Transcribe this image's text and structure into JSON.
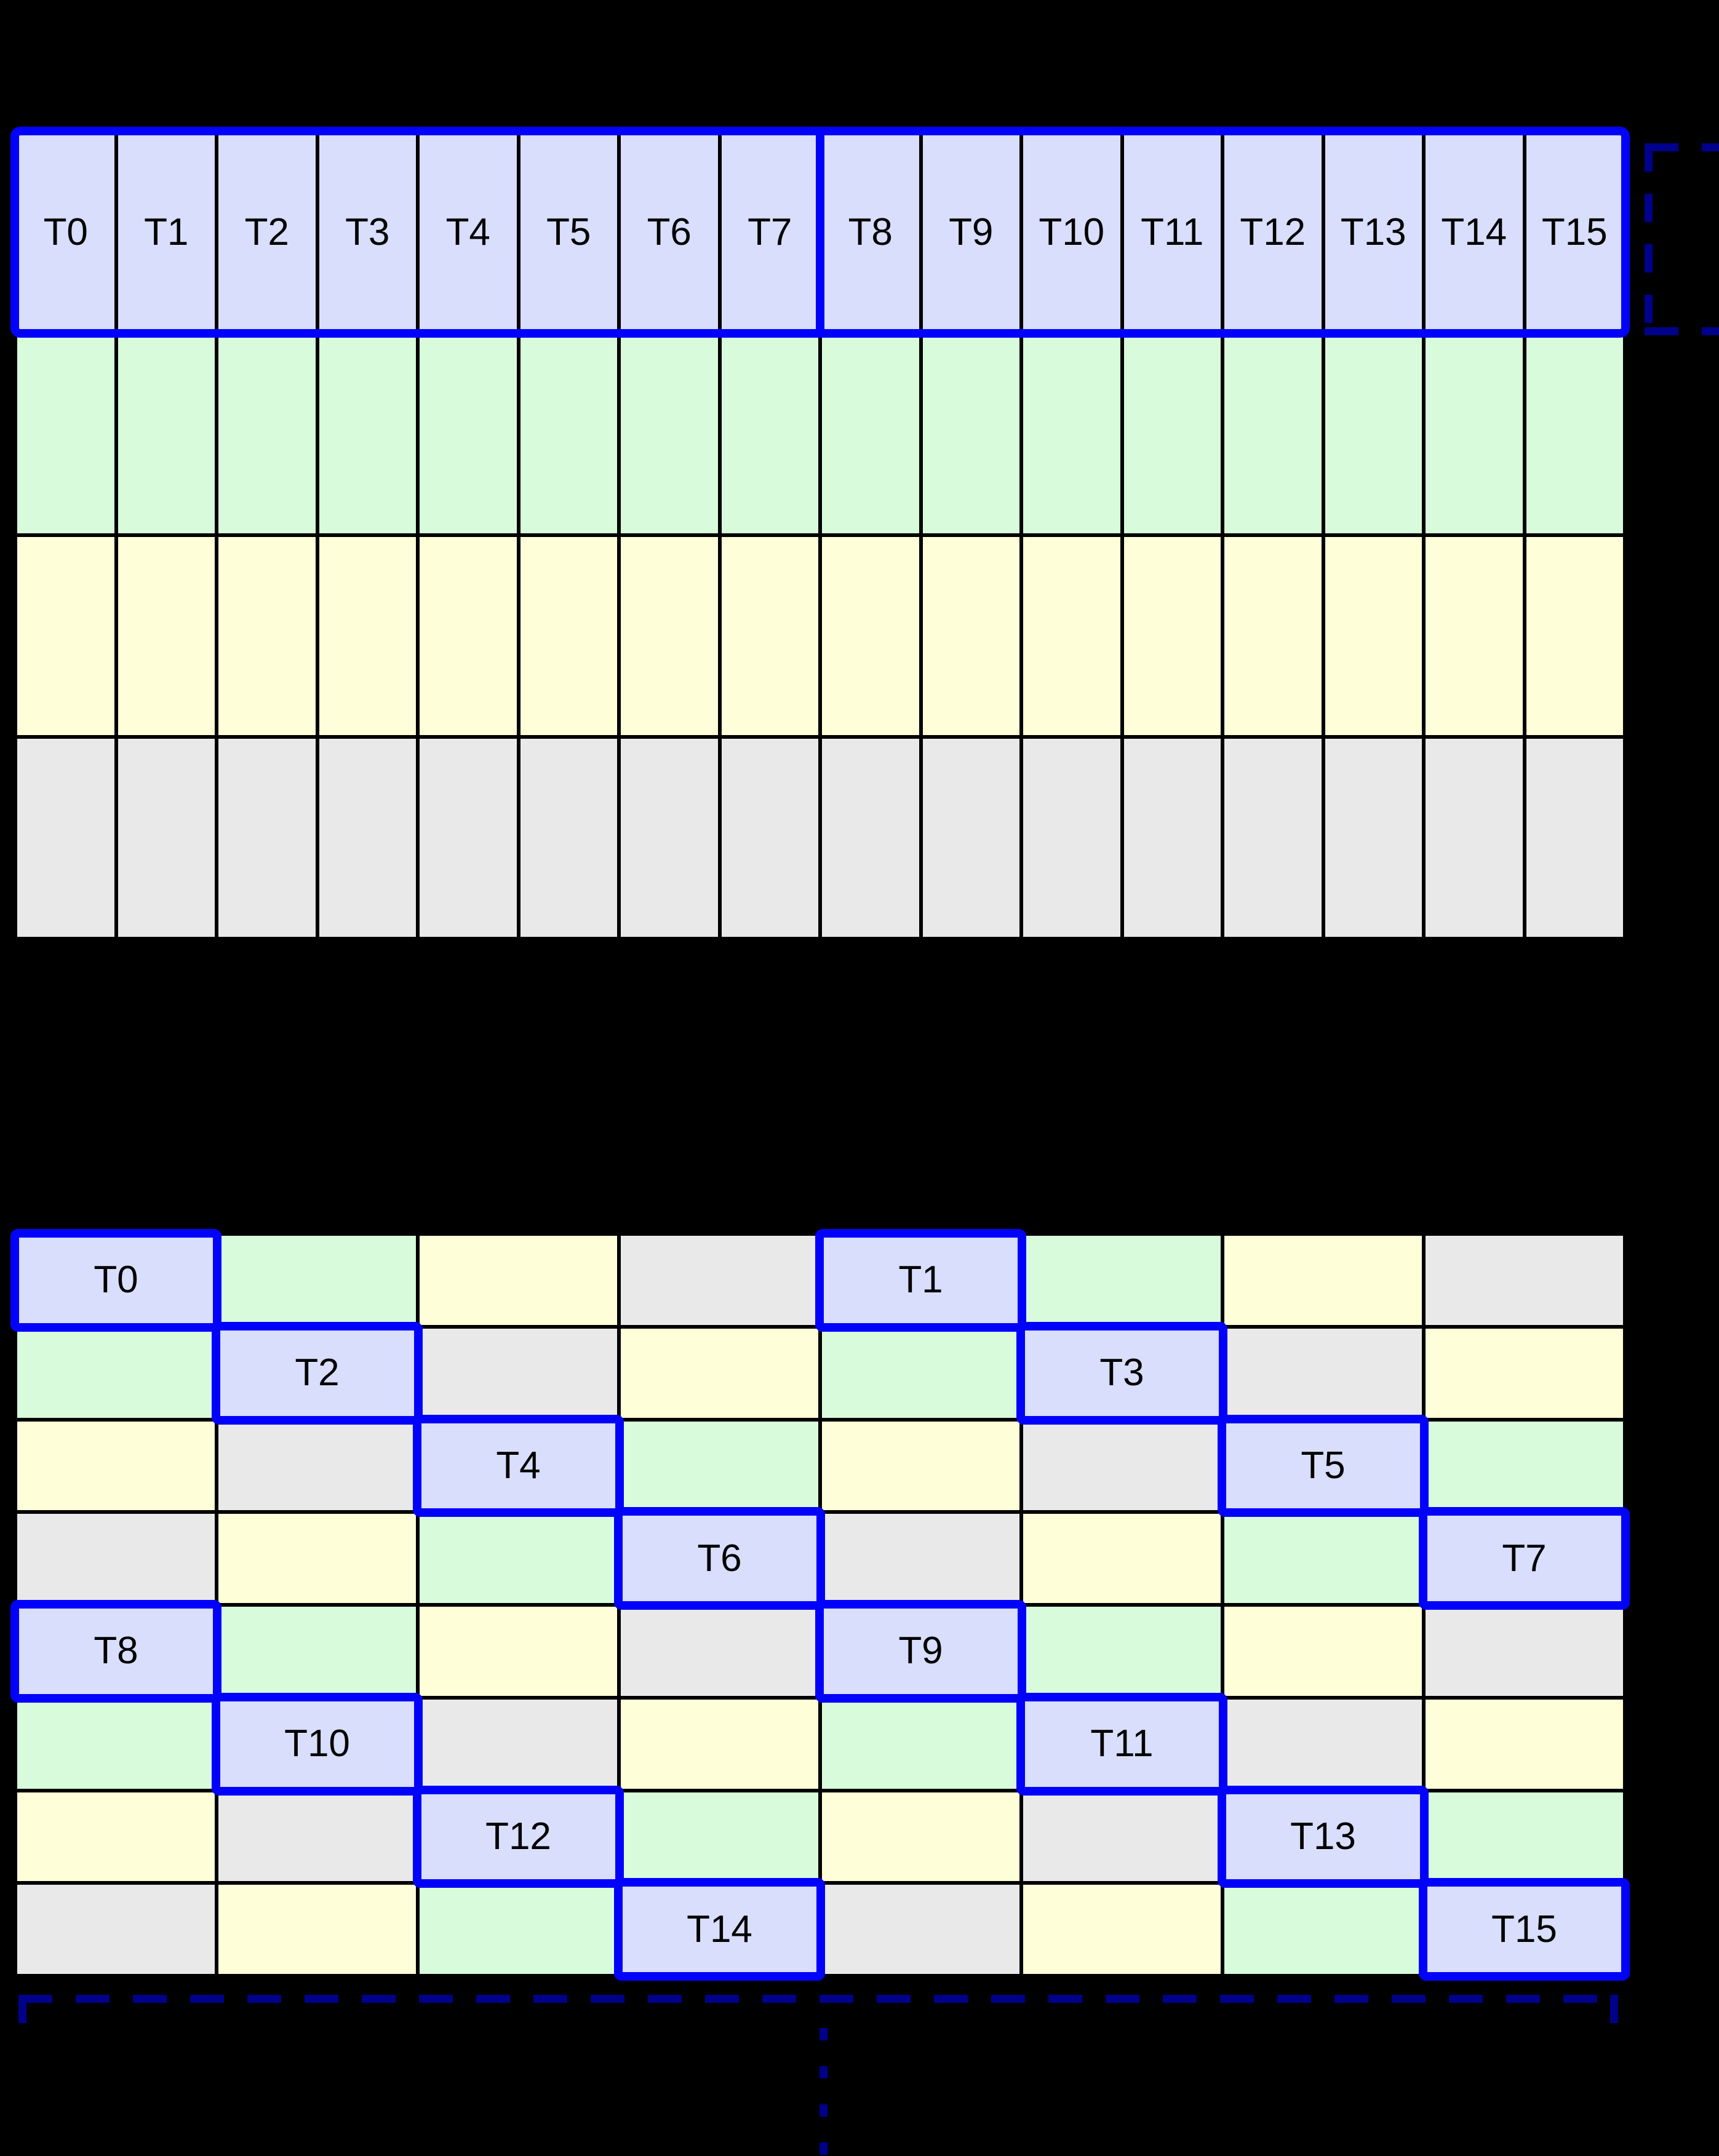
{
  "top_grid": {
    "columns": 16,
    "thread_labels": [
      "T0",
      "T1",
      "T2",
      "T3",
      "T4",
      "T5",
      "T6",
      "T7",
      "T8",
      "T9",
      "T10",
      "T11",
      "T12",
      "T13",
      "T14",
      "T15"
    ],
    "row_colors": [
      "blue",
      "green",
      "yellow",
      "gray"
    ],
    "warp_groups": 2,
    "threads_per_group": 8
  },
  "bottom_grid": {
    "columns": 8,
    "rows": 8,
    "color_matrix": [
      [
        "blue",
        "green",
        "yellow",
        "gray",
        "blue",
        "green",
        "yellow",
        "gray"
      ],
      [
        "green",
        "blue",
        "gray",
        "yellow",
        "green",
        "blue",
        "gray",
        "yellow"
      ],
      [
        "yellow",
        "gray",
        "blue",
        "green",
        "yellow",
        "gray",
        "blue",
        "green"
      ],
      [
        "gray",
        "yellow",
        "green",
        "blue",
        "gray",
        "yellow",
        "green",
        "blue"
      ],
      [
        "blue",
        "green",
        "yellow",
        "gray",
        "blue",
        "green",
        "yellow",
        "gray"
      ],
      [
        "green",
        "blue",
        "gray",
        "yellow",
        "green",
        "blue",
        "gray",
        "yellow"
      ],
      [
        "yellow",
        "gray",
        "blue",
        "green",
        "yellow",
        "gray",
        "blue",
        "green"
      ],
      [
        "gray",
        "yellow",
        "green",
        "blue",
        "gray",
        "yellow",
        "green",
        "blue"
      ]
    ],
    "label_matrix": [
      [
        "T0",
        "",
        "",
        "",
        "T1",
        "",
        "",
        ""
      ],
      [
        "",
        "T2",
        "",
        "",
        "",
        "T3",
        "",
        ""
      ],
      [
        "",
        "",
        "T4",
        "",
        "",
        "",
        "T5",
        ""
      ],
      [
        "",
        "",
        "",
        "T6",
        "",
        "",
        "",
        "T7"
      ],
      [
        "T8",
        "",
        "",
        "",
        "T9",
        "",
        "",
        ""
      ],
      [
        "",
        "T10",
        "",
        "",
        "",
        "T11",
        "",
        ""
      ],
      [
        "",
        "",
        "T12",
        "",
        "",
        "",
        "T13",
        ""
      ],
      [
        "",
        "",
        "",
        "T14",
        "",
        "",
        "",
        "T15"
      ]
    ]
  },
  "palette": {
    "cell_blue": "#d8defb",
    "cell_green": "#d8fcdb",
    "cell_yellow": "#fefed8",
    "cell_gray": "#e9e9e9",
    "highlight_blue": "#0202fc",
    "bracket_navy": "#00008b",
    "grid_line": "#000000",
    "background": "#000000"
  }
}
